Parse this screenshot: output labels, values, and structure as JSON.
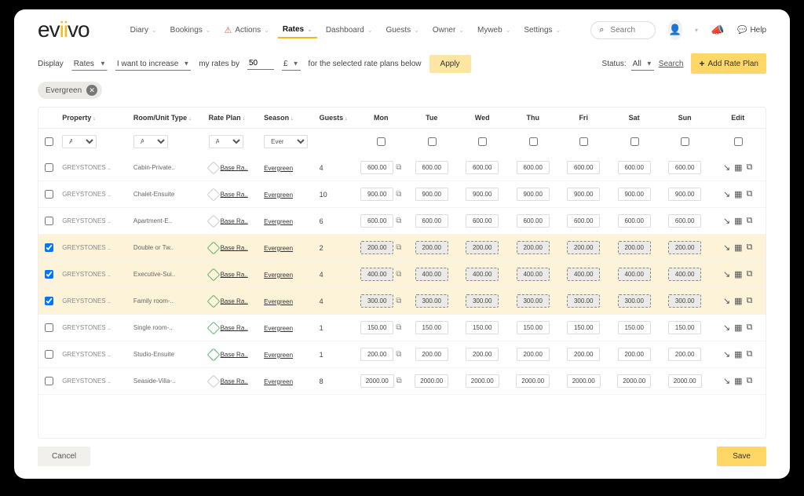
{
  "brand": {
    "name": "eviivo"
  },
  "nav": {
    "items": [
      "Diary",
      "Bookings",
      "Actions",
      "Rates",
      "Dashboard",
      "Guests",
      "Owner",
      "Myweb",
      "Settings"
    ],
    "active": "Rates",
    "warn": "Actions"
  },
  "search": {
    "placeholder": "Search"
  },
  "profile": {
    "caret": "▾"
  },
  "help": {
    "label": "Help"
  },
  "filter": {
    "display_label": "Display",
    "display_value": "Rates",
    "intent_value": "I want to increase",
    "bylabel": "my rates by",
    "amount": "50",
    "currency": "£",
    "scope_label": "for the selected rate plans below",
    "apply": "Apply"
  },
  "status": {
    "label": "Status:",
    "value": "All",
    "search": "Search"
  },
  "add_rate": {
    "label": "Add Rate Plan"
  },
  "chip": {
    "label": "Evergreen"
  },
  "columns": {
    "property": "Property",
    "room": "Room/Unit Type",
    "rateplan": "Rate Plan",
    "season": "Season",
    "guests": "Guests",
    "days": [
      "Mon",
      "Tue",
      "Wed",
      "Thu",
      "Fri",
      "Sat",
      "Sun"
    ],
    "edit": "Edit"
  },
  "filters_row": {
    "property": "All",
    "room": "All",
    "rateplan": "All",
    "season": "Evergree"
  },
  "rows": [
    {
      "checked": false,
      "hl": false,
      "property": "GREYSTONES ..",
      "room": "Cabin-Private..",
      "tag": "grey",
      "rate": "Base Ra..",
      "season": "Evergreen",
      "guests": "4",
      "days": [
        "600.00",
        "600.00",
        "600.00",
        "600.00",
        "600.00",
        "600.00",
        "600.00"
      ]
    },
    {
      "checked": false,
      "hl": false,
      "property": "GREYSTONES ..",
      "room": "Chalet-Ensuite",
      "tag": "grey",
      "rate": "Base Ra..",
      "season": "Evergreen",
      "guests": "10",
      "days": [
        "900.00",
        "900.00",
        "900.00",
        "900.00",
        "900.00",
        "900.00",
        "900.00"
      ]
    },
    {
      "checked": false,
      "hl": false,
      "property": "GREYSTONES ..",
      "room": "Apartment-E..",
      "tag": "grey",
      "rate": "Base Ra..",
      "season": "Evergreen",
      "guests": "6",
      "days": [
        "600.00",
        "600.00",
        "600.00",
        "600.00",
        "600.00",
        "600.00",
        "600.00"
      ]
    },
    {
      "checked": true,
      "hl": true,
      "property": "GREYSTONES ..",
      "room": "Double or Tw..",
      "tag": "green",
      "rate": "Base Ra..",
      "season": "Evergreen",
      "guests": "2",
      "days": [
        "200.00",
        "200.00",
        "200.00",
        "200.00",
        "200.00",
        "200.00",
        "200.00"
      ]
    },
    {
      "checked": true,
      "hl": true,
      "property": "GREYSTONES ..",
      "room": "Executive-Sui..",
      "tag": "green",
      "rate": "Base Ra..",
      "season": "Evergreen",
      "guests": "4",
      "days": [
        "400.00",
        "400.00",
        "400.00",
        "400.00",
        "400.00",
        "400.00",
        "400.00"
      ]
    },
    {
      "checked": true,
      "hl": true,
      "property": "GREYSTONES ..",
      "room": "Family room-..",
      "tag": "green",
      "rate": "Base Ra..",
      "season": "Evergreen",
      "guests": "4",
      "days": [
        "300.00",
        "300.00",
        "300.00",
        "300.00",
        "300.00",
        "300.00",
        "300.00"
      ]
    },
    {
      "checked": false,
      "hl": false,
      "property": "GREYSTONES ..",
      "room": "Single room-..",
      "tag": "green",
      "rate": "Base Ra..",
      "season": "Evergreen",
      "guests": "1",
      "days": [
        "150.00",
        "150.00",
        "150.00",
        "150.00",
        "150.00",
        "150.00",
        "150.00"
      ]
    },
    {
      "checked": false,
      "hl": false,
      "property": "GREYSTONES ..",
      "room": "Studio-Ensuite",
      "tag": "green",
      "rate": "Base Ra..",
      "season": "Evergreen",
      "guests": "1",
      "days": [
        "200.00",
        "200.00",
        "200.00",
        "200.00",
        "200.00",
        "200.00",
        "200.00"
      ]
    },
    {
      "checked": false,
      "hl": false,
      "property": "GREYSTONES ..",
      "room": "Seaside-Villa-..",
      "tag": "grey",
      "rate": "Base Ra..",
      "season": "Evergreen",
      "guests": "8",
      "days": [
        "2000.00",
        "2000.00",
        "2000.00",
        "2000.00",
        "2000.00",
        "2000.00",
        "2000.00"
      ]
    }
  ],
  "footer": {
    "cancel": "Cancel",
    "save": "Save"
  }
}
